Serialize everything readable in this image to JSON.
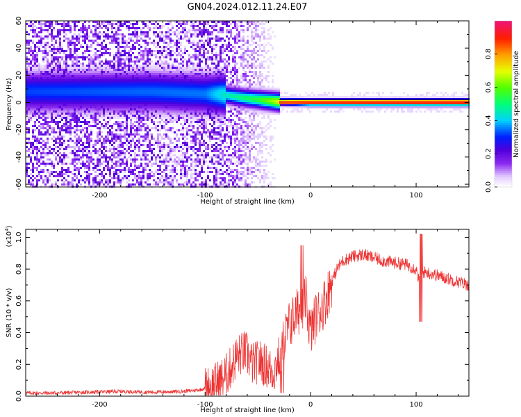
{
  "title": "GN04.2024.012.11.24.E07",
  "chart_data": [
    {
      "type": "heatmap",
      "xlabel": "Height of straight line (km)",
      "ylabel": "Frequency (Hz)",
      "xlim": [
        -270,
        150
      ],
      "ylim": [
        -62,
        60
      ],
      "xticks": [
        -200,
        -100,
        0,
        100
      ],
      "yticks": [
        -60,
        -40,
        -20,
        0,
        20,
        40,
        60
      ],
      "xtick_labels": [
        "-200",
        "-100",
        "0",
        "100"
      ],
      "ytick_labels": [
        "-60",
        "-40",
        "-20",
        "0",
        "20",
        "40",
        "60"
      ],
      "colorbar": {
        "label": "Normalized spectral amplitude",
        "range": [
          0,
          1
        ],
        "ticks": [
          "0.0",
          "0.2",
          "0.4",
          "0.6",
          "0.8"
        ],
        "tick_values": [
          0,
          0.2,
          0.4,
          0.6,
          0.8
        ]
      },
      "description_features": {
        "noise_region_x": [
          -270,
          -85
        ],
        "noise_level": 0.22,
        "band_center_hz": [
          [
            -270,
            8
          ],
          [
            -150,
            8
          ],
          [
            -85,
            6
          ],
          [
            -60,
            3
          ],
          [
            -30,
            0.5
          ],
          [
            0,
            0
          ],
          [
            150,
            0
          ]
        ],
        "band_peak": [
          [
            -270,
            0.32
          ],
          [
            -100,
            0.35
          ],
          [
            -80,
            0.45
          ],
          [
            -50,
            0.55
          ],
          [
            -30,
            0.7
          ],
          [
            0,
            0.9
          ],
          [
            150,
            0.95
          ]
        ]
      }
    },
    {
      "type": "line",
      "xlabel": "Height of straight line (km)",
      "ylabel": "SNR (10 * v/v)",
      "scale_label_base": "(x10",
      "scale_label_exp": "4",
      "scale_label_close": ")",
      "xlim": [
        -270,
        150
      ],
      "ylim": [
        0,
        1.05
      ],
      "xticks": [
        -200,
        -100,
        0,
        100
      ],
      "yticks": [
        0,
        0.2,
        0.4,
        0.6,
        0.8,
        1.0
      ],
      "xtick_labels": [
        "-200",
        "-100",
        "0",
        "100"
      ],
      "ytick_labels": [
        "0.0",
        "0.2",
        "0.4",
        "0.6",
        "0.8",
        "1.0"
      ],
      "color": "#ee3333",
      "series": [
        {
          "x": [
            -270,
            -240,
            -210,
            -180,
            -150,
            -120,
            -105,
            -95,
            -85,
            -78,
            -70,
            -62,
            -55,
            -48,
            -40,
            -35,
            -30,
            -25,
            -20,
            -15,
            -10,
            -5,
            0,
            5,
            10,
            15,
            20,
            25,
            30,
            40,
            50,
            60,
            70,
            80,
            90,
            100,
            104,
            106,
            110,
            120,
            130,
            140,
            150
          ],
          "y": [
            0.02,
            0.02,
            0.025,
            0.03,
            0.025,
            0.03,
            0.04,
            0.06,
            0.1,
            0.15,
            0.25,
            0.28,
            0.2,
            0.22,
            0.18,
            0.15,
            0.25,
            0.35,
            0.45,
            0.5,
            0.55,
            0.62,
            0.4,
            0.5,
            0.55,
            0.62,
            0.72,
            0.8,
            0.85,
            0.88,
            0.89,
            0.87,
            0.85,
            0.84,
            0.83,
            0.8,
            0.7,
            0.78,
            0.78,
            0.76,
            0.74,
            0.72,
            0.7
          ]
        }
      ]
    }
  ]
}
